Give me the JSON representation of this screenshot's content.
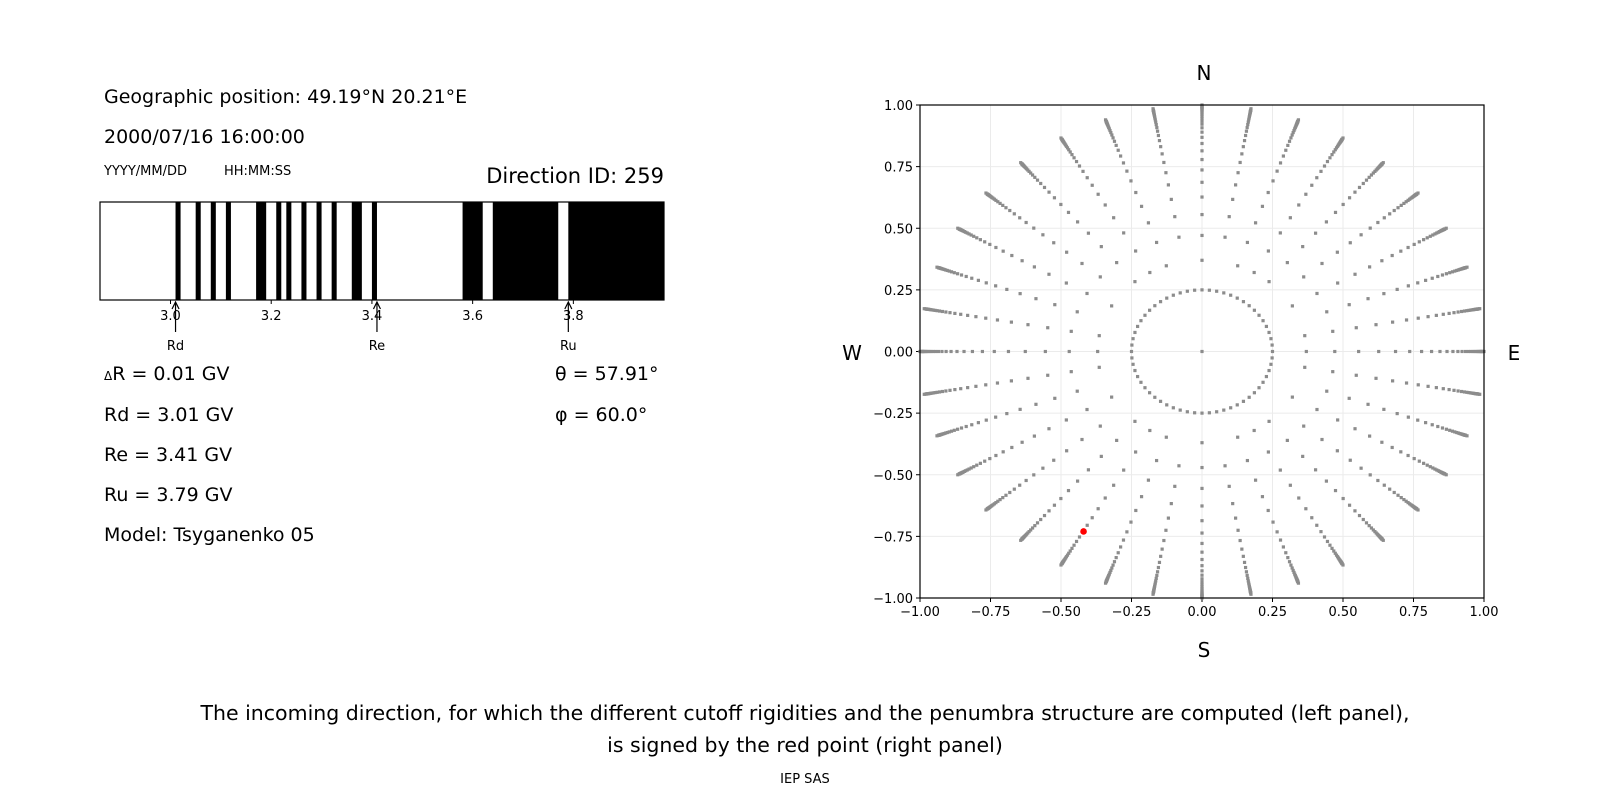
{
  "info": {
    "geo_position": "Geographic position: 49.19°N 20.21°E",
    "datetime": "2000/07/16 16:00:00",
    "date_format": "YYYY/MM/DD",
    "time_format": "HH:MM:SS",
    "direction_id": "Direction ID: 259",
    "delta_r_symbol": "Δ",
    "delta_r": "R = 0.01 GV",
    "rd": "Rd = 3.01 GV",
    "re": "Re = 3.41 GV",
    "ru": "Ru = 3.79 GV",
    "model": "Model: Tsyganenko 05",
    "theta": "θ = 57.91°",
    "phi": "φ = 60.0°"
  },
  "caption": {
    "line1": "The incoming direction, for which the different cutoff rigidities and the penumbra structure are computed (left panel),",
    "line2": "is signed by the red point (right panel)",
    "credit": "IEP SAS"
  },
  "colors": {
    "allowed": "#ffffff",
    "forbidden": "#000000",
    "points": "#8c8c8c",
    "selected": "#ff0000",
    "grid": "#ebebeb"
  },
  "chart_data": [
    {
      "type": "bar",
      "xlim": [
        2.86,
        3.98
      ],
      "xticks": [
        "3.0",
        "3.2",
        "3.4",
        "3.6",
        "3.8"
      ],
      "xtick_values": [
        3.0,
        3.2,
        3.4,
        3.6,
        3.8
      ],
      "black_intervals": [
        [
          3.01,
          3.02
        ],
        [
          3.05,
          3.06
        ],
        [
          3.08,
          3.09
        ],
        [
          3.11,
          3.12
        ],
        [
          3.17,
          3.19
        ],
        [
          3.21,
          3.22
        ],
        [
          3.23,
          3.24
        ],
        [
          3.26,
          3.27
        ],
        [
          3.29,
          3.3
        ],
        [
          3.32,
          3.33
        ],
        [
          3.36,
          3.38
        ],
        [
          3.4,
          3.41
        ],
        [
          3.58,
          3.62
        ],
        [
          3.64,
          3.77
        ],
        [
          3.79,
          3.98
        ]
      ],
      "markers": [
        {
          "label": "Rd",
          "value": 3.01
        },
        {
          "label": "Re",
          "value": 3.41
        },
        {
          "label": "Ru",
          "value": 3.79
        }
      ]
    },
    {
      "type": "scatter",
      "xlim": [
        -1,
        1
      ],
      "ylim": [
        -1,
        1
      ],
      "grid": true,
      "xticks": [
        "−1.00",
        "−0.75",
        "−0.50",
        "−0.25",
        "0.00",
        "0.25",
        "0.50",
        "0.75",
        "1.00"
      ],
      "yticks": [
        "−1.00",
        "−0.75",
        "−0.50",
        "−0.25",
        "0.00",
        "0.25",
        "0.50",
        "0.75",
        "1.00"
      ],
      "tick_values": [
        -1,
        -0.75,
        -0.5,
        -0.25,
        0,
        0.25,
        0.5,
        0.75,
        1
      ],
      "direction_labels": {
        "north": "N",
        "south": "S",
        "west": "W",
        "east": "E"
      },
      "selected_point": {
        "x": -0.42,
        "y": -0.73
      }
    }
  ]
}
